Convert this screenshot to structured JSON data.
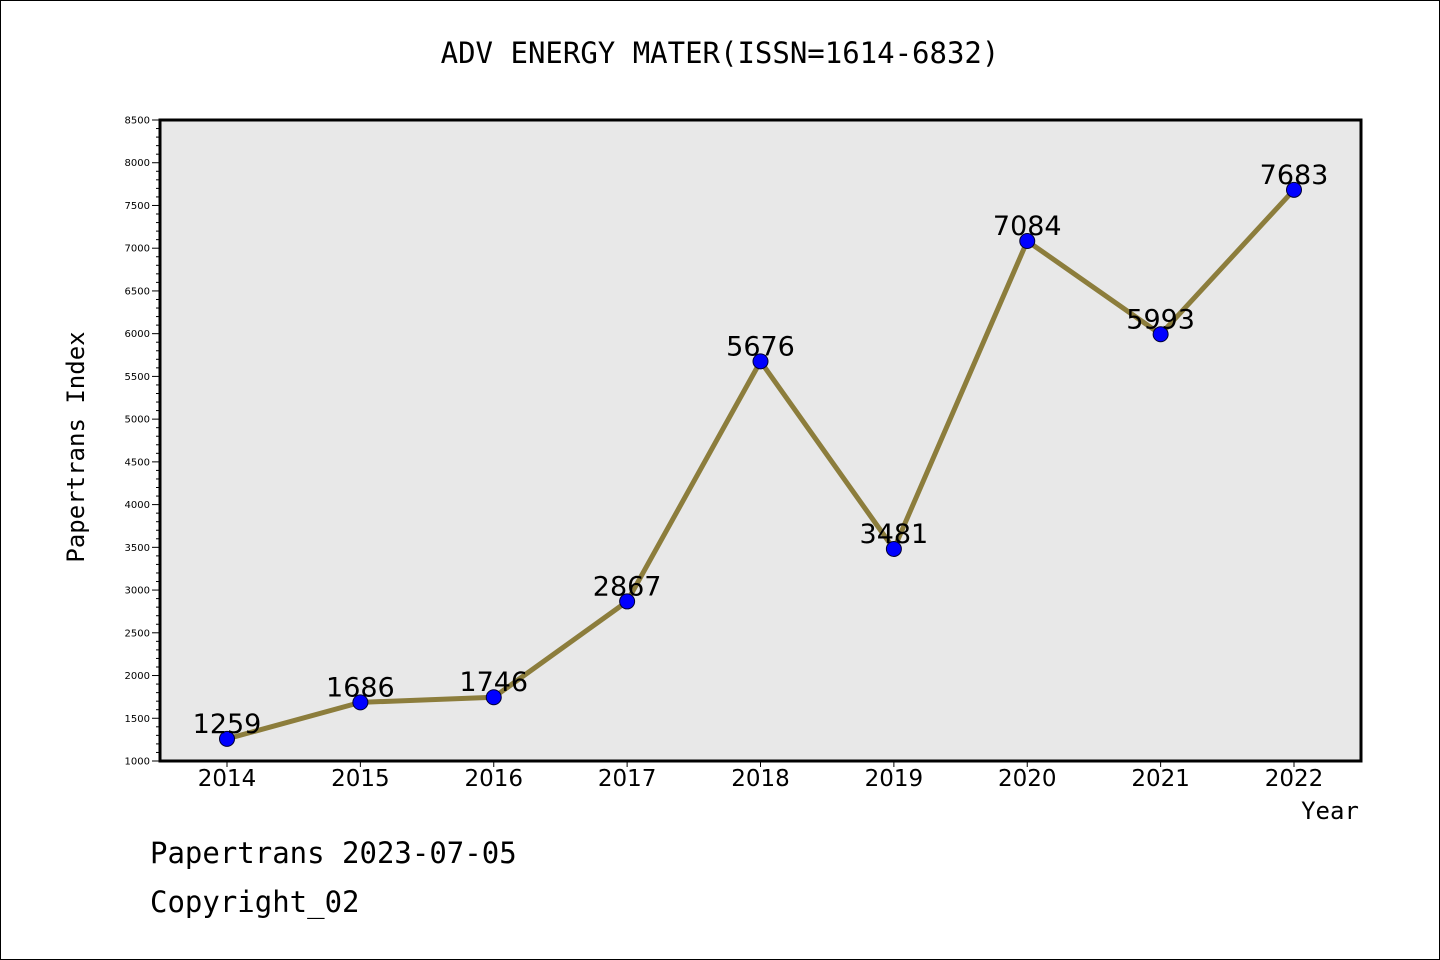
{
  "chart_data": {
    "type": "line",
    "title": "ADV ENERGY MATER(ISSN=1614-6832)",
    "xlabel": "Year",
    "ylabel": "Papertrans Index",
    "categories": [
      "2014",
      "2015",
      "2016",
      "2017",
      "2018",
      "2019",
      "2020",
      "2021",
      "2022"
    ],
    "series": [
      {
        "values": [
          1259,
          1686,
          1746,
          2867,
          5676,
          3481,
          7084,
          5993,
          7683
        ]
      }
    ],
    "ylim": [
      1000,
      8500
    ],
    "yticks": [
      "1000",
      "1500",
      "2000",
      "2500",
      "3000",
      "3500",
      "4000",
      "4500",
      "5000",
      "5500",
      "6000",
      "6500",
      "7000",
      "7500",
      "8000",
      "8500"
    ],
    "grid": false,
    "colors": {
      "line": "#8c7d3c",
      "marker": "#0000ff",
      "plot_background": "#e8e8e8"
    }
  },
  "footer": {
    "date_text": "Papertrans 2023-07-05",
    "copyright_text": "Copyright_02"
  }
}
